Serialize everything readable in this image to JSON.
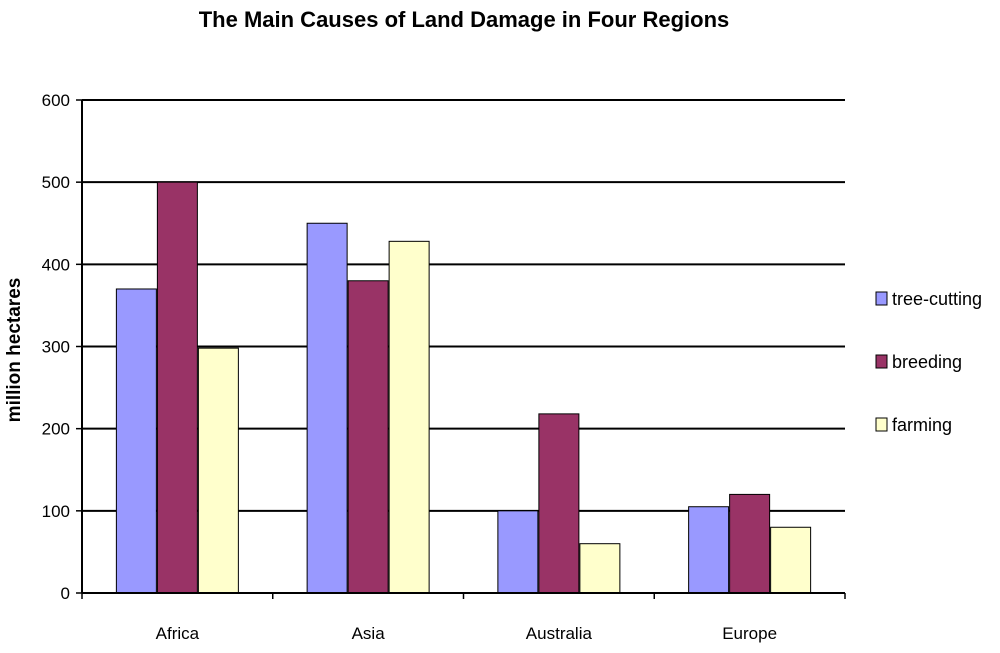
{
  "chart_data": {
    "type": "bar",
    "title": "The Main Causes of Land Damage in Four Regions",
    "xlabel": "",
    "ylabel": "million hectares",
    "categories": [
      "Africa",
      "Asia",
      "Australia",
      "Europe"
    ],
    "series": [
      {
        "name": "tree-cutting",
        "values": [
          370,
          450,
          100,
          105
        ],
        "color": "#9999ff"
      },
      {
        "name": "breeding",
        "values": [
          500,
          380,
          218,
          120
        ],
        "color": "#993366"
      },
      {
        "name": "farming",
        "values": [
          298,
          428,
          60,
          80
        ],
        "color": "#ffffcc"
      }
    ],
    "ylim": [
      0,
      600
    ],
    "yticks": [
      "0",
      "100",
      "200",
      "300",
      "400",
      "500",
      "600"
    ],
    "grid": true,
    "legend_position": "right"
  }
}
